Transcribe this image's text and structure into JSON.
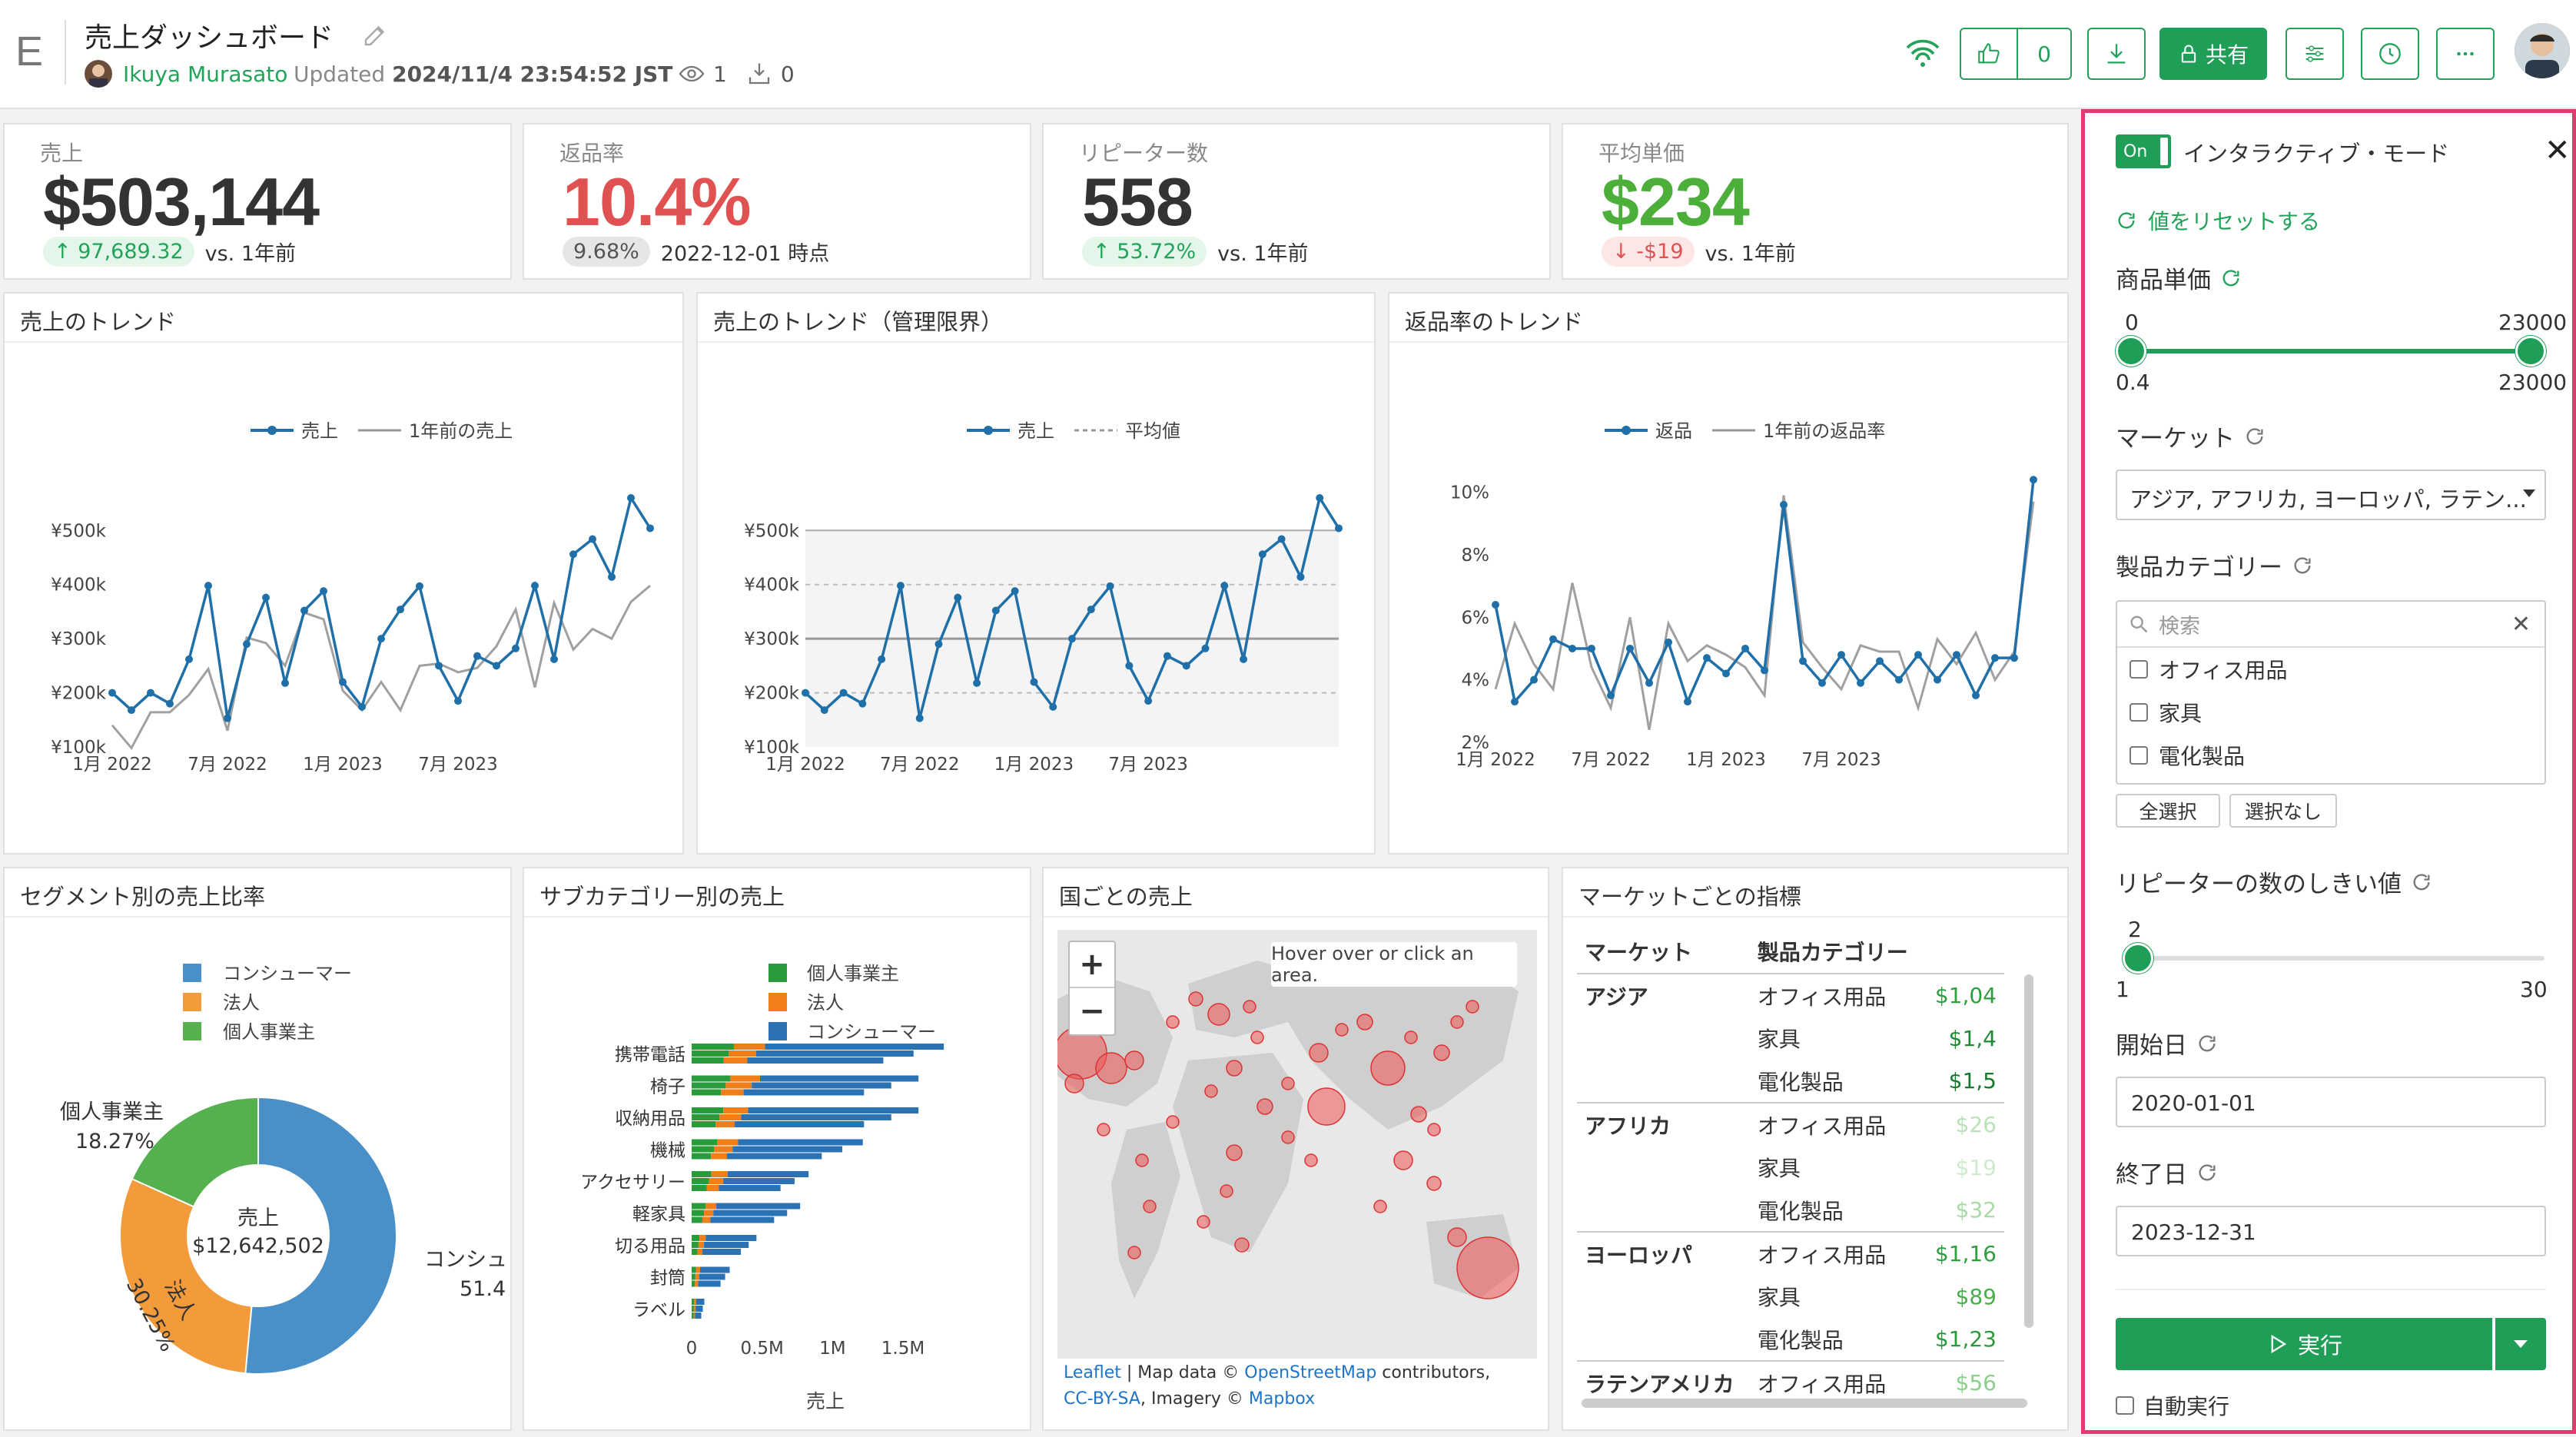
{
  "header": {
    "logo": "E",
    "title": "売上ダッシュボード",
    "author": "Ikuya Murasato",
    "updated_prefix": "Updated",
    "updated_time": "2024/11/4 23:54:52 JST",
    "views": "1",
    "downloads": "0",
    "likes": "0",
    "share_label": "共有"
  },
  "kpis": [
    {
      "label": "売上",
      "value": "$503,144",
      "badge": "97,689.32",
      "note": "vs. 1年前",
      "color": "#333333"
    },
    {
      "label": "返品率",
      "value": "10.4%",
      "badge": "9.68%",
      "note": "2022-12-01 時点",
      "color": "#e05252"
    },
    {
      "label": "リピーター数",
      "value": "558",
      "badge": "53.72%",
      "note": "vs. 1年前",
      "color": "#333333"
    },
    {
      "label": "平均単価",
      "value": "$234",
      "badge": "-$19",
      "note": "vs. 1年前",
      "color": "#4caf3a"
    }
  ],
  "charts": {
    "trend": {
      "title": "売上のトレンド",
      "legend": [
        "売上",
        "1年前の売上"
      ]
    },
    "control": {
      "title": "売上のトレンド（管理限界）",
      "legend": [
        "売上",
        "平均値"
      ]
    },
    "returns": {
      "title": "返品率のトレンド",
      "legend": [
        "返品",
        "1年前の返品率"
      ]
    },
    "segment": {
      "title": "セグメント別の売上比率",
      "center_label": "売上",
      "center_value": "$12,642,502",
      "legend": [
        "コンシューマー",
        "法人",
        "個人事業主"
      ],
      "slice_labels": [
        "個人事業主",
        "18.27%",
        "法人",
        "30.25%",
        "コンシュ",
        "51.4"
      ]
    },
    "subcat": {
      "title": "サブカテゴリー別の売上",
      "legend": [
        "個人事業主",
        "法人",
        "コンシューマー"
      ],
      "xlabel": "売上",
      "xticks": [
        "0",
        "0.5M",
        "1M",
        "1.5M"
      ],
      "categories": [
        "携帯電話",
        "椅子",
        "収納用品",
        "機械",
        "アクセサリー",
        "軽家具",
        "切る用品",
        "封筒",
        "ラベル"
      ]
    },
    "map": {
      "title": "国ごとの売上",
      "hover": "Hover over or click an area.",
      "zoom_in": "+",
      "zoom_out": "−",
      "attrib1": "Leaflet",
      "attrib2": " | Map data © ",
      "attrib3": "OpenStreetMap",
      "attrib4": " contributors, ",
      "attrib5": "CC-BY-SA",
      "attrib6": ", Imagery © ",
      "attrib7": "Mapbox"
    },
    "market": {
      "title": "マーケットごとの指標",
      "col1": "マーケット",
      "col2": "製品カテゴリー",
      "rows": [
        {
          "market": "アジア",
          "cat": "オフィス用品",
          "val": "$1,04",
          "color": "#2e9e3e"
        },
        {
          "market": "",
          "cat": "家具",
          "val": "$1,4",
          "color": "#1f8a34"
        },
        {
          "market": "",
          "cat": "電化製品",
          "val": "$1,5",
          "color": "#157a2a"
        },
        {
          "market": "アフリカ",
          "cat": "オフィス用品",
          "val": "$26",
          "color": "#b8e2b8"
        },
        {
          "market": "",
          "cat": "家具",
          "val": "$19",
          "color": "#cdeccd"
        },
        {
          "market": "",
          "cat": "電化製品",
          "val": "$32",
          "color": "#a8dba8"
        },
        {
          "market": "ヨーロッパ",
          "cat": "オフィス用品",
          "val": "$1,16",
          "color": "#2e9e3e"
        },
        {
          "market": "",
          "cat": "家具",
          "val": "$89",
          "color": "#4cae4c"
        },
        {
          "market": "",
          "cat": "電化製品",
          "val": "$1,23",
          "color": "#2a9a3a"
        },
        {
          "market": "ラテンアメリカ",
          "cat": "オフィス用品",
          "val": "$56",
          "color": "#8ccf8c"
        }
      ]
    }
  },
  "chart_data": [
    {
      "type": "line",
      "title": "売上のトレンド",
      "x_ticks": [
        "1月 2022",
        "7月 2022",
        "1月 2023",
        "7月 2023"
      ],
      "y_ticks": [
        "¥100k",
        "¥200k",
        "¥300k",
        "¥400k",
        "¥500k"
      ],
      "ylim": [
        100000,
        560000
      ],
      "series": [
        {
          "name": "売上",
          "color": "#1f6fa8",
          "values": [
            200000,
            168000,
            200000,
            180000,
            262000,
            398000,
            153000,
            290000,
            376000,
            218000,
            352000,
            388000,
            220000,
            174000,
            300000,
            354000,
            397000,
            250000,
            185000,
            268000,
            250000,
            282000,
            398000,
            262000,
            456000,
            484000,
            414000,
            560000,
            504000
          ]
        },
        {
          "name": "1年前の売上",
          "color": "#999999",
          "values": [
            140000,
            98000,
            164000,
            164000,
            196000,
            244000,
            130000,
            302000,
            292000,
            250000,
            348000,
            336000,
            204000,
            168000,
            220000,
            168000,
            250000,
            254000,
            238000,
            246000,
            286000,
            354000,
            210000,
            366000,
            280000,
            318000,
            300000,
            368000,
            398000
          ]
        }
      ]
    },
    {
      "type": "line",
      "title": "売上のトレンド（管理限界）",
      "x_ticks": [
        "1月 2022",
        "7月 2022",
        "1月 2023",
        "7月 2023"
      ],
      "y_ticks": [
        "¥100k",
        "¥200k",
        "¥300k",
        "¥400k",
        "¥500k"
      ],
      "ylim": [
        100000,
        560000
      ],
      "series": [
        {
          "name": "売上",
          "color": "#1f6fa8",
          "values": [
            200000,
            168000,
            200000,
            180000,
            262000,
            398000,
            153000,
            290000,
            376000,
            218000,
            352000,
            388000,
            220000,
            174000,
            300000,
            354000,
            397000,
            250000,
            185000,
            268000,
            250000,
            282000,
            398000,
            262000,
            456000,
            484000,
            414000,
            560000,
            504000
          ]
        },
        {
          "name": "平均値",
          "color": "#999999",
          "values": [
            300000,
            300000
          ]
        }
      ]
    },
    {
      "type": "line",
      "title": "返品率のトレンド",
      "x_ticks": [
        "1月 2022",
        "7月 2022",
        "1月 2023",
        "7月 2023"
      ],
      "y_ticks": [
        "2%",
        "4%",
        "6%",
        "8%",
        "10%"
      ],
      "ylim": [
        2,
        10.8
      ],
      "series": [
        {
          "name": "返品",
          "color": "#1f6fa8",
          "values": [
            6.4,
            3.3,
            4.0,
            5.3,
            5.0,
            5.0,
            3.5,
            5.0,
            3.9,
            5.2,
            3.3,
            4.7,
            4.2,
            5.0,
            4.3,
            9.6,
            4.6,
            3.9,
            4.8,
            3.9,
            4.6,
            4.0,
            4.8,
            4.0,
            4.8,
            3.5,
            4.7,
            4.7,
            10.4
          ]
        },
        {
          "name": "1年前の返品率",
          "color": "#999999",
          "values": [
            3.7,
            5.8,
            4.5,
            3.7,
            7.1,
            4.4,
            3.1,
            6.0,
            2.4,
            5.8,
            4.6,
            5.1,
            4.8,
            4.4,
            3.5,
            9.9,
            5.2,
            4.4,
            3.7,
            5.1,
            4.9,
            4.9,
            3.1,
            5.3,
            4.5,
            5.5,
            4.0,
            4.9,
            9.7
          ]
        }
      ]
    },
    {
      "type": "pie",
      "title": "セグメント別の売上比率",
      "categories": [
        "コンシューマー",
        "法人",
        "個人事業主"
      ],
      "values": [
        51.48,
        30.25,
        18.27
      ],
      "colors": [
        "#4a90c8",
        "#f39a3a",
        "#55b04f"
      ]
    },
    {
      "type": "bar",
      "title": "サブカテゴリー別の売上",
      "xlabel": "売上",
      "xlim": [
        0,
        1800000
      ],
      "categories": [
        "携帯電話",
        "椅子",
        "収納用品",
        "機械",
        "アクセサリー",
        "軽家具",
        "切る用品",
        "封筒",
        "ラベル"
      ],
      "series": [
        {
          "name": "個人事業主",
          "color": "#2a9b3d",
          "values": [
            300000,
            275000,
            225000,
            180000,
            140000,
            100000,
            55000,
            30000,
            18000
          ]
        },
        {
          "name": "法人",
          "color": "#f07f1a",
          "values": [
            520000,
            485000,
            400000,
            330000,
            255000,
            175000,
            100000,
            60000,
            32000
          ]
        },
        {
          "name": "コンシューマー",
          "color": "#2a72b3",
          "values": [
            1790000,
            1610000,
            1610000,
            1215000,
            830000,
            770000,
            460000,
            270000,
            90000
          ]
        }
      ]
    }
  ],
  "panel": {
    "toggle": "On",
    "mode": "インタラクティブ・モード",
    "close": "✕",
    "reset": "値をリセットする",
    "price_label": "商品単価",
    "price_min_top": "0",
    "price_max_top": "23000",
    "price_min": "0.4",
    "price_max": "23000",
    "price_range": [
      0,
      1
    ],
    "market_label": "マーケット",
    "market_value": "アジア, アフリカ, ヨーロッパ, ラテン...",
    "category_label": "製品カテゴリー",
    "search_placeholder": "検索",
    "categories": [
      "オフィス用品",
      "家具",
      "電化製品"
    ],
    "select_all": "全選択",
    "select_none": "選択なし",
    "repeat_label": "リピーターの数のしきい値",
    "repeat_value": "2",
    "repeat_min": "1",
    "repeat_max": "30",
    "repeat_fraction": 0.034,
    "start_label": "開始日",
    "start_value": "2020-01-01",
    "end_label": "終了日",
    "end_value": "2023-12-31",
    "run_label": "実行",
    "auto_label": "自動実行"
  }
}
